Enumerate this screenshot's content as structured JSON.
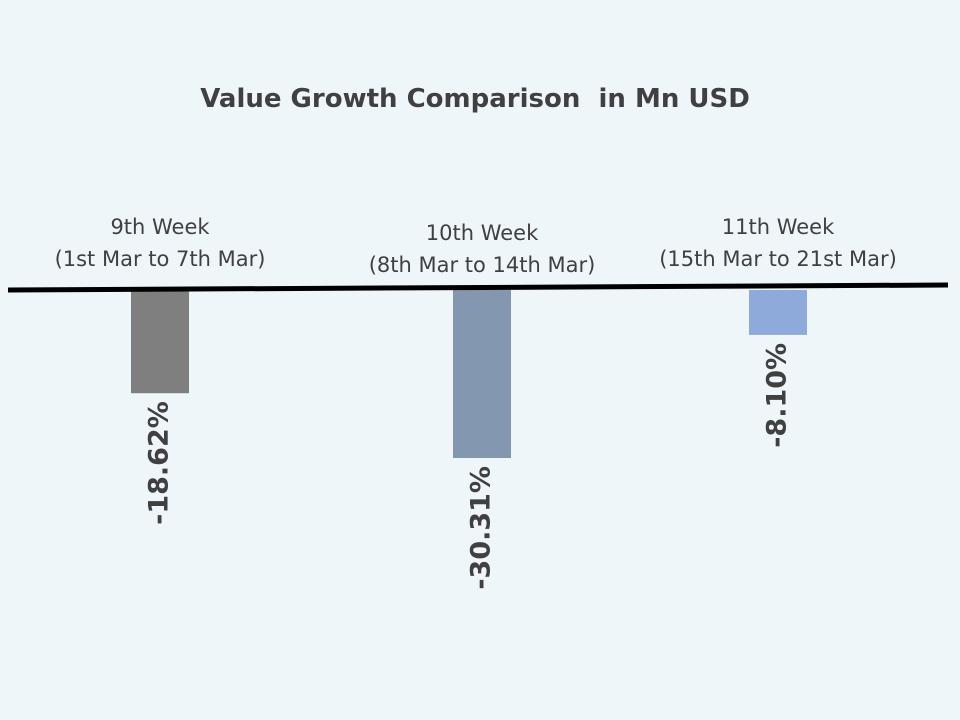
{
  "chart_data": {
    "type": "bar",
    "title": "Value Growth Comparison  in Mn USD",
    "categories": [
      {
        "line1": "9th Week",
        "line2": "(1st Mar to 7th Mar)"
      },
      {
        "line1": "10th Week",
        "line2": "(8th Mar to 14th Mar)"
      },
      {
        "line1": "11th Week",
        "line2": "(15th Mar to 21st Mar)"
      }
    ],
    "values": [
      -18.62,
      -30.31,
      -8.1
    ],
    "value_labels": [
      "-18.62%",
      "-30.31%",
      "-8.10%"
    ],
    "colors": [
      "#7f7f7f",
      "#8497b0",
      "#8eaadb"
    ],
    "axis_color": "#000000",
    "ylim": [
      -35,
      0
    ],
    "grid": false,
    "legend": "none",
    "data_label_orientation": "rotated-90"
  }
}
